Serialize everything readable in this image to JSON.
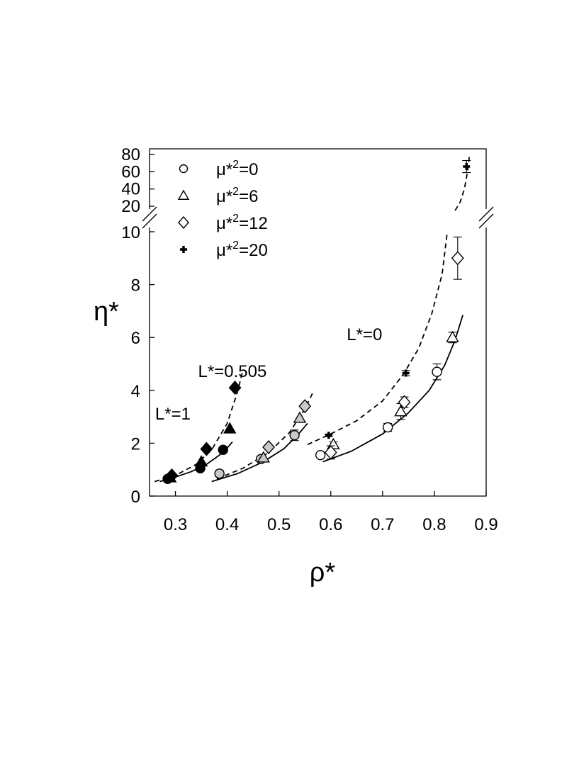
{
  "chart_data": {
    "type": "scatter",
    "xlabel": "ρ*",
    "ylabel": "η*",
    "xlim": [
      0.25,
      0.9
    ],
    "ylim_lower": [
      0,
      10
    ],
    "ylim_upper": [
      20,
      80
    ],
    "x_ticks": [
      0.3,
      0.4,
      0.5,
      0.6,
      0.7,
      0.8,
      0.9
    ],
    "x_tick_labels": [
      "0.3",
      "0.4",
      "0.5",
      "0.6",
      "0.7",
      "0.8",
      "0.9"
    ],
    "y_ticks_lower": [
      0,
      2,
      4,
      6,
      8,
      10
    ],
    "y_tick_labels_lower": [
      "0",
      "2",
      "4",
      "6",
      "8",
      "10"
    ],
    "y_ticks_upper": [
      20,
      40,
      60,
      80
    ],
    "y_tick_labels_upper": [
      "20",
      "40",
      "60",
      "80"
    ],
    "broken_axis": true,
    "legend_position": "top-left",
    "legend": [
      {
        "marker": "circle",
        "prefix": "μ*",
        "sup": "2",
        "suffix": "=0"
      },
      {
        "marker": "triangle",
        "prefix": "μ*",
        "sup": "2",
        "suffix": "=6"
      },
      {
        "marker": "diamond",
        "prefix": "μ*",
        "sup": "2",
        "suffix": "=12"
      },
      {
        "marker": "plus",
        "prefix": "μ*",
        "sup": "2",
        "suffix": "=20"
      }
    ],
    "annotations": [
      {
        "text": "L*=1",
        "x": 0.295,
        "y": 2.9
      },
      {
        "text": "L*=0.505",
        "x": 0.41,
        "y": 4.5
      },
      {
        "text": "L*=0",
        "x": 0.665,
        "y": 5.9
      }
    ],
    "series": [
      {
        "group": "L*=0",
        "marker": "circle",
        "fill": "white",
        "x": [
          0.58,
          0.71,
          0.805
        ],
        "y": [
          1.55,
          2.6,
          4.7
        ],
        "err": [
          0.08,
          0.15,
          0.3
        ]
      },
      {
        "group": "L*=0",
        "marker": "triangle",
        "fill": "white",
        "x": [
          0.605,
          0.735,
          0.835
        ],
        "y": [
          1.95,
          3.2,
          6.0
        ],
        "err": [
          0.1,
          0.3,
          0.2
        ]
      },
      {
        "group": "L*=0",
        "marker": "diamond",
        "fill": "white",
        "x": [
          0.6,
          0.742,
          0.845
        ],
        "y": [
          1.65,
          3.55,
          9.0
        ],
        "err": [
          0.25,
          0.2,
          0.8
        ]
      },
      {
        "group": "L*=0",
        "marker": "plus",
        "fill": "black",
        "x": [
          0.596,
          0.745,
          0.862
        ],
        "y": [
          2.3,
          4.65,
          66
        ],
        "err": [
          0.05,
          0.1,
          7
        ]
      },
      {
        "group": "L*=0.505",
        "marker": "circle",
        "fill": "lightgray",
        "x": [
          0.385,
          0.465,
          0.53
        ],
        "y": [
          0.85,
          1.4,
          2.3
        ],
        "err": [
          0.12,
          0.1,
          0.2
        ]
      },
      {
        "group": "L*=0.505",
        "marker": "triangle",
        "fill": "lightgray",
        "x": [
          0.47,
          0.54
        ],
        "y": [
          1.45,
          2.95
        ],
        "err": [
          0,
          0
        ]
      },
      {
        "group": "L*=0.505",
        "marker": "diamond",
        "fill": "lightgray",
        "x": [
          0.48,
          0.55
        ],
        "y": [
          1.85,
          3.4
        ],
        "err": [
          0,
          0
        ]
      },
      {
        "group": "L*=1",
        "marker": "circle",
        "fill": "black",
        "x": [
          0.285,
          0.348,
          0.392
        ],
        "y": [
          0.65,
          1.05,
          1.75
        ],
        "err": [
          0,
          0,
          0
        ]
      },
      {
        "group": "L*=1",
        "marker": "triangle",
        "fill": "black",
        "x": [
          0.29,
          0.35,
          0.405
        ],
        "y": [
          0.7,
          1.3,
          2.55
        ],
        "err": [
          0,
          0,
          0
        ]
      },
      {
        "group": "L*=1",
        "marker": "diamond",
        "fill": "black",
        "x": [
          0.293,
          0.36,
          0.415
        ],
        "y": [
          0.78,
          1.78,
          4.1
        ],
        "err": [
          0,
          0,
          0
        ]
      }
    ],
    "fit_curves": [
      {
        "group": "L*=1",
        "style": "solid",
        "x": [
          0.27,
          0.3,
          0.33,
          0.36,
          0.39,
          0.4,
          0.41
        ],
        "y": [
          0.55,
          0.72,
          0.92,
          1.2,
          1.62,
          1.82,
          2.05
        ]
      },
      {
        "group": "L*=1",
        "style": "dashed",
        "x": [
          0.26,
          0.3,
          0.34,
          0.37,
          0.4,
          0.42,
          0.43
        ],
        "y": [
          0.55,
          0.78,
          1.2,
          1.75,
          2.75,
          3.95,
          4.75
        ]
      },
      {
        "group": "L*=0.505",
        "style": "solid",
        "x": [
          0.37,
          0.42,
          0.47,
          0.51,
          0.54,
          0.555
        ],
        "y": [
          0.55,
          0.85,
          1.3,
          1.8,
          2.4,
          2.75
        ]
      },
      {
        "group": "L*=0.505",
        "style": "dashed",
        "x": [
          0.38,
          0.43,
          0.48,
          0.52,
          0.55,
          0.565
        ],
        "y": [
          0.65,
          1.05,
          1.65,
          2.4,
          3.3,
          3.9
        ]
      },
      {
        "group": "L*=0",
        "style": "solid",
        "x": [
          0.585,
          0.64,
          0.7,
          0.75,
          0.79,
          0.82,
          0.84,
          0.855
        ],
        "y": [
          1.3,
          1.7,
          2.35,
          3.15,
          4.0,
          4.95,
          5.9,
          6.85
        ]
      },
      {
        "group": "L*=0",
        "style": "dashed",
        "x": [
          0.555,
          0.6,
          0.65,
          0.7,
          0.74,
          0.77,
          0.795,
          0.815,
          0.825
        ],
        "y": [
          1.95,
          2.35,
          2.85,
          3.6,
          4.6,
          5.6,
          6.9,
          8.4,
          10
        ]
      },
      {
        "group": "L*=0",
        "style": "dashed",
        "x": [
          0.84,
          0.85,
          0.858,
          0.864,
          0.868
        ],
        "y": [
          15,
          25,
          40,
          60,
          80
        ]
      }
    ]
  }
}
